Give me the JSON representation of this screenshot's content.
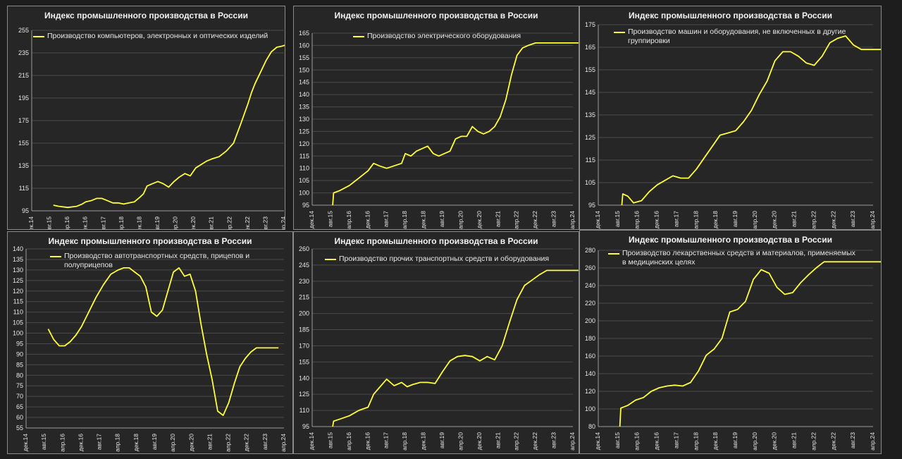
{
  "chart_data": [
    {
      "type": "line",
      "title": "Индекс промышленного производства в России",
      "legend": [
        "Производство компьютеров, электронных и оптических изделий"
      ],
      "ylim": [
        95,
        255
      ],
      "yticks": [
        95,
        115,
        135,
        155,
        175,
        195,
        215,
        235,
        255
      ],
      "categories": [
        "дек.14",
        "авг.15",
        "апр.16",
        "дек.16",
        "авг.17",
        "апр.18",
        "дек.18",
        "авг.19",
        "апр.20",
        "дек.20",
        "авг.21",
        "апр.22",
        "дек.22",
        "авг.23",
        "апр.24"
      ],
      "series": [
        {
          "name": "Производство компьютеров, электронных и оптических изделий",
          "x": [
            1.2,
            1.5,
            2.0,
            2.5,
            2.8,
            3.0,
            3.3,
            3.6,
            3.9,
            4.2,
            4.5,
            4.8,
            5.1,
            5.4,
            5.7,
            6.0,
            6.2,
            6.4,
            6.7,
            7.0,
            7.3,
            7.6,
            7.9,
            8.2,
            8.5,
            8.8,
            9.1,
            9.4,
            9.7,
            10.0,
            10.4,
            10.8,
            11.2,
            11.6,
            12.0,
            12.2,
            12.4,
            12.7,
            13.0,
            13.3,
            13.6,
            13.9,
            14.1,
            14.3
          ],
          "values": [
            100,
            99,
            98,
            99,
            101,
            103,
            104,
            106,
            106,
            104,
            102,
            102,
            101,
            102,
            103,
            107,
            110,
            117,
            119,
            121,
            119,
            116,
            121,
            125,
            128,
            126,
            133,
            136,
            139,
            141,
            143,
            148,
            155,
            172,
            190,
            200,
            208,
            218,
            228,
            236,
            240,
            241,
            242,
            243
          ]
        }
      ]
    },
    {
      "type": "line",
      "title": "Индекс промышленного производства в России",
      "legend": [
        "Производство электрического оборудования"
      ],
      "ylim": [
        95,
        165
      ],
      "yticks": [
        95,
        100,
        105,
        110,
        115,
        120,
        125,
        130,
        135,
        140,
        145,
        150,
        155,
        160,
        165
      ],
      "categories": [
        "дек.14",
        "авг.15",
        "апр.16",
        "дек.16",
        "авг.17",
        "апр.18",
        "дек.18",
        "авг.19",
        "апр.20",
        "дек.20",
        "авг.21",
        "апр.22",
        "дек.22",
        "авг.23",
        "апр.24"
      ],
      "series": [
        {
          "name": "Производство электрического оборудования",
          "x": [
            1.1,
            1.15,
            1.5,
            2.0,
            2.5,
            3.0,
            3.3,
            3.6,
            4.0,
            4.4,
            4.8,
            5.0,
            5.3,
            5.6,
            5.9,
            6.2,
            6.5,
            6.8,
            7.1,
            7.4,
            7.7,
            8.0,
            8.3,
            8.6,
            8.9,
            9.2,
            9.5,
            9.8,
            10.1,
            10.4,
            10.7,
            11.0,
            11.3,
            11.6,
            12.0,
            12.4,
            12.8,
            13.2,
            13.6,
            14.0,
            14.3
          ],
          "values": [
            95,
            100,
            101,
            103,
            106,
            109,
            112,
            111,
            110,
            111,
            112,
            116,
            115,
            117,
            118,
            119,
            116,
            115,
            116,
            117,
            122,
            123,
            123,
            127,
            125,
            124,
            125,
            127,
            131,
            138,
            148,
            156,
            159,
            160,
            161,
            161,
            161,
            161,
            161,
            161,
            161
          ]
        }
      ]
    },
    {
      "type": "line",
      "title": "Индекс промышленного производства в России",
      "legend": [
        "Производство машин и оборудования, не включенных в другие",
        "группировки"
      ],
      "ylim": [
        95,
        175
      ],
      "yticks": [
        95,
        105,
        115,
        125,
        135,
        145,
        155,
        165,
        175
      ],
      "categories": [
        "дек.14",
        "авг.15",
        "апр.16",
        "дек.16",
        "авг.17",
        "апр.18",
        "дек.18",
        "авг.19",
        "апр.20",
        "дек.20",
        "авг.21",
        "апр.22",
        "дек.22",
        "авг.23",
        "апр.24"
      ],
      "series": [
        {
          "name": "Производство машин и оборудования, не включенных в другие группировки",
          "x": [
            1.2,
            1.25,
            1.5,
            1.8,
            2.2,
            2.6,
            3.0,
            3.4,
            3.8,
            4.2,
            4.6,
            5.0,
            5.4,
            5.8,
            6.2,
            6.6,
            7.0,
            7.4,
            7.8,
            8.2,
            8.6,
            9.0,
            9.4,
            9.8,
            10.2,
            10.6,
            11.0,
            11.4,
            11.8,
            12.2,
            12.6,
            13.0,
            13.4,
            13.8,
            14.2,
            14.5
          ],
          "values": [
            95,
            100,
            99,
            96,
            97,
            101,
            104,
            106,
            108,
            107,
            107,
            111,
            116,
            121,
            126,
            127,
            128,
            132,
            137,
            144,
            150,
            159,
            163,
            163,
            161,
            158,
            157,
            161,
            167,
            169,
            170,
            166,
            164,
            164,
            164,
            164
          ]
        }
      ]
    },
    {
      "type": "line",
      "title": "Индекс промышленного производства в России",
      "legend": [
        "Производство автотранспортных средств, прицепов и",
        "полуприцепов"
      ],
      "ylim": [
        55,
        140
      ],
      "yticks": [
        55,
        60,
        65,
        70,
        75,
        80,
        85,
        90,
        95,
        100,
        105,
        110,
        115,
        120,
        125,
        130,
        135,
        140
      ],
      "categories": [
        "дек.14",
        "авг.15",
        "апр.16",
        "дек.16",
        "авг.17",
        "апр.18",
        "дек.18",
        "авг.19",
        "апр.20",
        "дек.20",
        "авг.21",
        "апр.22",
        "дек.22",
        "авг.23",
        "апр.24"
      ],
      "series": [
        {
          "name": "Производство автотранспортных средств, прицепов и полуприцепов",
          "x": [
            1.2,
            1.5,
            1.8,
            2.1,
            2.4,
            2.7,
            3.0,
            3.4,
            3.8,
            4.2,
            4.6,
            5.0,
            5.3,
            5.6,
            5.9,
            6.2,
            6.5,
            6.8,
            7.1,
            7.4,
            7.7,
            8.0,
            8.3,
            8.6,
            8.9,
            9.2,
            9.5,
            9.8,
            10.1,
            10.4,
            10.7,
            11.0,
            11.3,
            11.6,
            11.9,
            12.2,
            12.5,
            12.8,
            13.1,
            13.4,
            13.7
          ],
          "values": [
            102,
            97,
            94,
            94,
            96,
            99,
            103,
            110,
            117,
            123,
            128,
            130,
            131,
            131,
            129,
            127,
            122,
            110,
            108,
            111,
            120,
            129,
            131,
            127,
            128,
            120,
            104,
            90,
            78,
            63,
            61,
            67,
            76,
            84,
            88,
            91,
            93,
            93,
            93,
            93,
            93
          ]
        }
      ]
    },
    {
      "type": "line",
      "title": "Индекс промышленного производства в России",
      "legend": [
        "Производство прочих транспортных средств и оборудования"
      ],
      "ylim": [
        95,
        260
      ],
      "yticks": [
        95,
        110,
        125,
        140,
        155,
        170,
        185,
        200,
        215,
        230,
        245,
        260
      ],
      "categories": [
        "дек.14",
        "авг.15",
        "апр.16",
        "дек.16",
        "авг.17",
        "апр.18",
        "дек.18",
        "авг.19",
        "апр.20",
        "дек.20",
        "авг.21",
        "апр.22",
        "дек.22",
        "авг.23",
        "апр.24"
      ],
      "series": [
        {
          "name": "Производство прочих транспортных средств и оборудования",
          "x": [
            1.1,
            1.15,
            1.5,
            2.0,
            2.5,
            3.0,
            3.3,
            3.6,
            4.0,
            4.4,
            4.8,
            5.1,
            5.4,
            5.8,
            6.2,
            6.6,
            7.0,
            7.4,
            7.8,
            8.2,
            8.6,
            9.0,
            9.4,
            9.8,
            10.2,
            10.6,
            11.0,
            11.4,
            11.8,
            12.2,
            12.6,
            13.0,
            13.4,
            13.7,
            14.0,
            14.3
          ],
          "values": [
            95,
            100,
            102,
            105,
            110,
            113,
            125,
            131,
            139,
            133,
            136,
            132,
            134,
            136,
            136,
            135,
            146,
            156,
            160,
            161,
            160,
            156,
            160,
            157,
            170,
            192,
            213,
            226,
            231,
            236,
            240,
            240,
            240,
            240,
            240,
            240
          ]
        }
      ]
    },
    {
      "type": "line",
      "title": "Индекс промышленного производства в России",
      "legend": [
        "Производство лекарственных средств и материалов, применяемых",
        "в медицинских целях"
      ],
      "ylim": [
        80,
        280
      ],
      "yticks": [
        80,
        100,
        120,
        140,
        160,
        180,
        200,
        220,
        240,
        260,
        280
      ],
      "categories": [
        "дек.14",
        "авг.15",
        "апр.16",
        "дек.16",
        "авг.17",
        "апр.18",
        "дек.18",
        "авг.19",
        "апр.20",
        "дек.20",
        "авг.21",
        "апр.22",
        "дек.22",
        "авг.23",
        "апр.24"
      ],
      "series": [
        {
          "name": "Производство лекарственных средств и материалов, применяемых в медицинских целях",
          "x": [
            1.1,
            1.15,
            1.5,
            1.9,
            2.3,
            2.7,
            3.1,
            3.5,
            3.9,
            4.3,
            4.7,
            5.1,
            5.5,
            5.9,
            6.3,
            6.7,
            7.1,
            7.5,
            7.9,
            8.3,
            8.7,
            9.1,
            9.5,
            9.9,
            10.3,
            10.7,
            11.1,
            11.5,
            11.9,
            12.3,
            12.7,
            13.1,
            13.5,
            13.9,
            14.3,
            14.5
          ],
          "values": [
            80,
            101,
            104,
            110,
            113,
            120,
            124,
            126,
            127,
            126,
            130,
            143,
            161,
            168,
            180,
            210,
            213,
            222,
            247,
            258,
            254,
            238,
            230,
            232,
            243,
            252,
            260,
            267,
            267,
            267,
            267,
            267,
            267,
            267,
            267,
            267
          ]
        }
      ]
    }
  ]
}
